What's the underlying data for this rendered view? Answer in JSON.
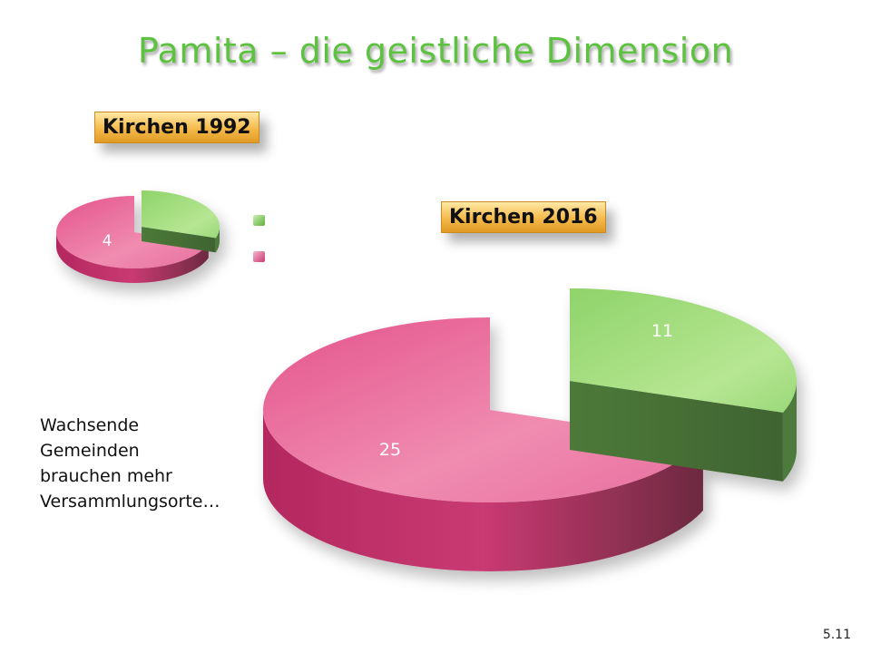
{
  "slide": {
    "title": "Pamita – die geistliche Dimension",
    "note_lines": [
      "Wachsende",
      "Gemeinden",
      "brauchen mehr",
      "Versammlungsorte…"
    ],
    "page_number": "5.11"
  },
  "legend": {
    "colors": [
      "#7ecb5a",
      "#e0548a"
    ]
  },
  "chart_data": [
    {
      "type": "pie",
      "title": "Kirchen 1992",
      "values": [
        null,
        4
      ],
      "data_labels": [
        "",
        "4"
      ],
      "colors": [
        "#7ecb5a",
        "#e0548a"
      ],
      "exploded_slice": 0
    },
    {
      "type": "pie",
      "title": "Kirchen 2016",
      "values": [
        11,
        25
      ],
      "data_labels": [
        "11",
        "25"
      ],
      "colors": [
        "#7ecb5a",
        "#e0548a"
      ],
      "exploded_slice": 0
    }
  ]
}
